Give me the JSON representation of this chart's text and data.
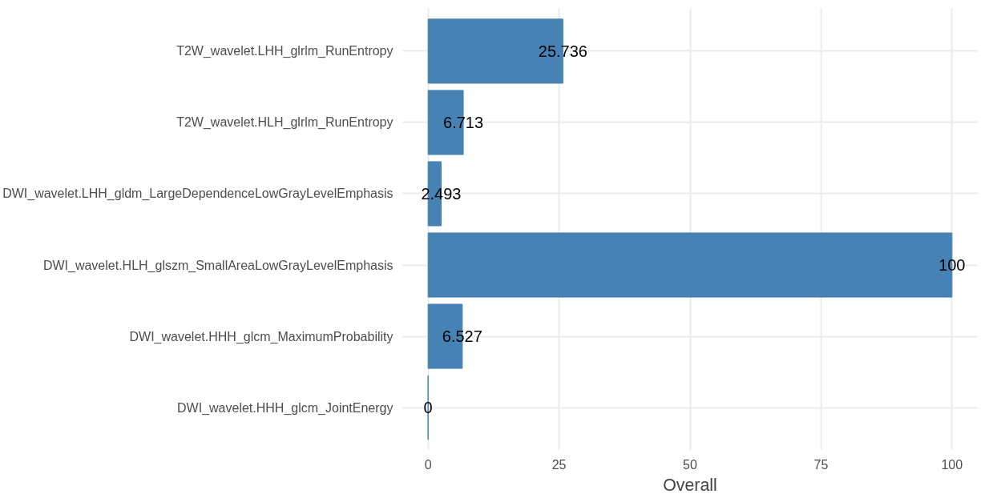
{
  "chart_data": {
    "type": "bar",
    "orientation": "horizontal",
    "xlabel": "Overall",
    "categories": [
      "T2W_wavelet.LHH_glrlm_RunEntropy",
      "T2W_wavelet.HLH_glrlm_RunEntropy",
      "DWI_wavelet.LHH_gldm_LargeDependenceLowGrayLevelEmphasis",
      "DWI_wavelet.HLH_glszm_SmallAreaLowGrayLevelEmphasis",
      "DWI_wavelet.HHH_glcm_MaximumProbability",
      "DWI_wavelet.HHH_glcm_JointEnergy"
    ],
    "values": [
      25.736,
      6.713,
      2.493,
      100,
      6.527,
      0
    ],
    "color": "#4682b4",
    "xlim": [
      -5,
      105
    ],
    "xticks": [
      0,
      25,
      50,
      75,
      100
    ],
    "grid": true,
    "data_labels": true
  }
}
